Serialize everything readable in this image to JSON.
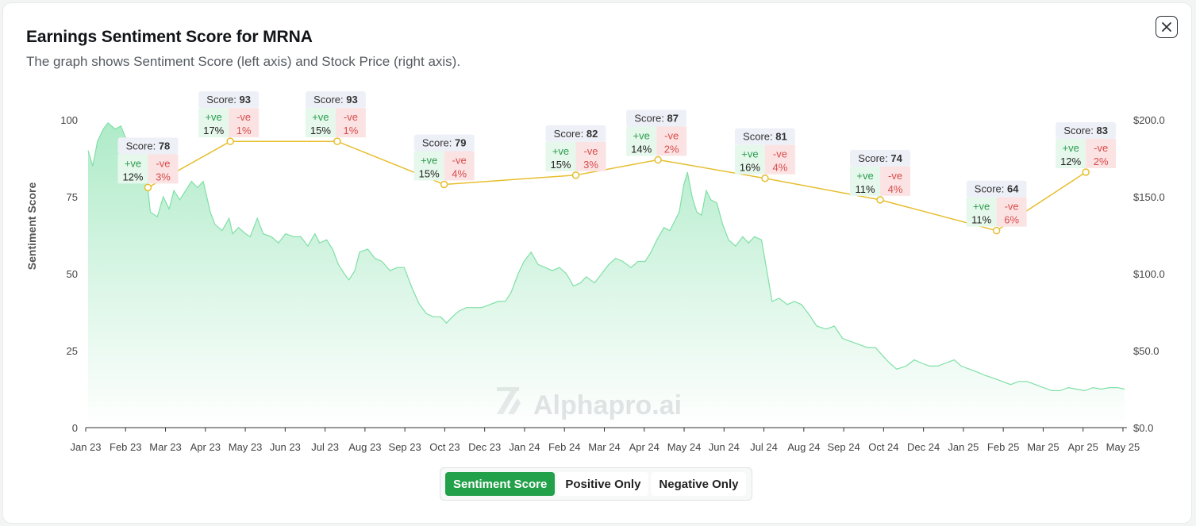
{
  "modal": {
    "title": "Earnings Sentiment Score for MRNA",
    "subtitle": "The graph shows Sentiment Score (left axis) and Stock Price (right axis).",
    "close_icon": "close-icon"
  },
  "watermark": "Alphapro.ai",
  "toggle": {
    "options": [
      "Sentiment Score",
      "Positive Only",
      "Negative Only"
    ],
    "active": "Sentiment Score"
  },
  "colors": {
    "sentiment_line": "#e6be2e",
    "price_area": "#3fcf7d",
    "positive": "#2a9d4e",
    "negative": "#d94c4c",
    "active_toggle": "#22a04a"
  },
  "chart_data": {
    "type": "line",
    "title": "Earnings Sentiment Score for MRNA",
    "subtitle": "The graph shows Sentiment Score (left axis) and Stock Price (right axis).",
    "x_ticks": [
      "Jan 23",
      "Feb 23",
      "Mar 23",
      "Apr 23",
      "May 23",
      "Jun 23",
      "Jul 23",
      "Aug 23",
      "Sep 23",
      "Oct 23",
      "Dec 23",
      "Jan 24",
      "Feb 24",
      "Mar 24",
      "Apr 24",
      "May 24",
      "Jun 24",
      "Jul 24",
      "Aug 24",
      "Sep 24",
      "Oct 24",
      "Dec 24",
      "Jan 25",
      "Feb 25",
      "Mar 25",
      "Apr 25",
      "May 25"
    ],
    "y_left": {
      "label": "Sentiment Score",
      "range": [
        0,
        100
      ],
      "ticks": [
        "0",
        "25",
        "50",
        "75",
        "100"
      ]
    },
    "y_right": {
      "label": "",
      "range": [
        0,
        200
      ],
      "ticks": [
        "$0.0",
        "$50.0",
        "$100.0",
        "$150.0",
        "$200.0"
      ]
    },
    "grid": false,
    "sentiment_series": {
      "name": "Sentiment Score",
      "points": [
        {
          "date": "2023-02-23",
          "score": 78,
          "positive": "12%",
          "negative": "3%"
        },
        {
          "date": "2023-05-04",
          "score": 93,
          "positive": "17%",
          "negative": "1%"
        },
        {
          "date": "2023-08-03",
          "score": 93,
          "positive": "15%",
          "negative": "1%"
        },
        {
          "date": "2023-11-02",
          "score": 79,
          "positive": "15%",
          "negative": "4%"
        },
        {
          "date": "2024-02-22",
          "score": 82,
          "positive": "15%",
          "negative": "3%"
        },
        {
          "date": "2024-05-02",
          "score": 87,
          "positive": "14%",
          "negative": "2%"
        },
        {
          "date": "2024-08-01",
          "score": 81,
          "positive": "16%",
          "negative": "4%"
        },
        {
          "date": "2024-11-07",
          "score": 74,
          "positive": "11%",
          "negative": "4%"
        },
        {
          "date": "2025-02-14",
          "score": 64,
          "positive": "11%",
          "negative": "6%"
        },
        {
          "date": "2025-05-01",
          "score": 83,
          "positive": "12%",
          "negative": "2%"
        }
      ]
    },
    "price_series": {
      "name": "Stock Price",
      "points": [
        [
          "2023-01-03",
          180
        ],
        [
          "2023-01-07",
          170
        ],
        [
          "2023-01-11",
          186
        ],
        [
          "2023-01-16",
          194
        ],
        [
          "2023-01-20",
          198
        ],
        [
          "2023-01-26",
          194
        ],
        [
          "2023-01-31",
          196
        ],
        [
          "2023-02-06",
          184
        ],
        [
          "2023-02-12",
          174
        ],
        [
          "2023-02-17",
          172
        ],
        [
          "2023-02-22",
          162
        ],
        [
          "2023-02-25",
          140
        ],
        [
          "2023-03-03",
          137
        ],
        [
          "2023-03-08",
          150
        ],
        [
          "2023-03-13",
          142
        ],
        [
          "2023-03-17",
          154
        ],
        [
          "2023-03-22",
          148
        ],
        [
          "2023-03-27",
          154
        ],
        [
          "2023-04-01",
          160
        ],
        [
          "2023-04-06",
          156
        ],
        [
          "2023-04-11",
          160
        ],
        [
          "2023-04-17",
          140
        ],
        [
          "2023-04-21",
          132
        ],
        [
          "2023-04-27",
          128
        ],
        [
          "2023-05-03",
          136
        ],
        [
          "2023-05-06",
          126
        ],
        [
          "2023-05-11",
          130
        ],
        [
          "2023-05-17",
          126
        ],
        [
          "2023-05-21",
          124
        ],
        [
          "2023-05-27",
          136
        ],
        [
          "2023-06-01",
          126
        ],
        [
          "2023-06-08",
          124
        ],
        [
          "2023-06-14",
          120
        ],
        [
          "2023-06-20",
          126
        ],
        [
          "2023-06-27",
          124
        ],
        [
          "2023-07-03",
          124
        ],
        [
          "2023-07-09",
          118
        ],
        [
          "2023-07-15",
          126
        ],
        [
          "2023-07-19",
          120
        ],
        [
          "2023-07-25",
          122
        ],
        [
          "2023-07-30",
          116
        ],
        [
          "2023-08-04",
          106
        ],
        [
          "2023-08-09",
          100
        ],
        [
          "2023-08-13",
          96
        ],
        [
          "2023-08-18",
          102
        ],
        [
          "2023-08-22",
          114
        ],
        [
          "2023-08-29",
          116
        ],
        [
          "2023-09-04",
          110
        ],
        [
          "2023-09-10",
          108
        ],
        [
          "2023-09-17",
          102
        ],
        [
          "2023-09-23",
          104
        ],
        [
          "2023-09-29",
          104
        ],
        [
          "2023-10-06",
          90
        ],
        [
          "2023-10-12",
          80
        ],
        [
          "2023-10-18",
          74
        ],
        [
          "2023-10-24",
          72
        ],
        [
          "2023-10-30",
          72
        ],
        [
          "2023-11-04",
          68
        ],
        [
          "2023-11-09",
          72
        ],
        [
          "2023-11-15",
          76
        ],
        [
          "2023-11-21",
          78
        ],
        [
          "2023-11-27",
          78
        ],
        [
          "2023-12-04",
          78
        ],
        [
          "2023-12-11",
          80
        ],
        [
          "2023-12-18",
          82
        ],
        [
          "2023-12-24",
          82
        ],
        [
          "2023-12-29",
          88
        ],
        [
          "2024-01-04",
          100
        ],
        [
          "2024-01-09",
          108
        ],
        [
          "2024-01-15",
          114
        ],
        [
          "2024-01-21",
          106
        ],
        [
          "2024-01-27",
          104
        ],
        [
          "2024-02-02",
          102
        ],
        [
          "2024-02-08",
          104
        ],
        [
          "2024-02-14",
          100
        ],
        [
          "2024-02-20",
          92
        ],
        [
          "2024-02-26",
          94
        ],
        [
          "2024-03-02",
          98
        ],
        [
          "2024-03-09",
          94
        ],
        [
          "2024-03-15",
          100
        ],
        [
          "2024-03-21",
          106
        ],
        [
          "2024-03-27",
          110
        ],
        [
          "2024-04-02",
          108
        ],
        [
          "2024-04-09",
          104
        ],
        [
          "2024-04-15",
          108
        ],
        [
          "2024-04-21",
          108
        ],
        [
          "2024-04-26",
          114
        ],
        [
          "2024-05-01",
          122
        ],
        [
          "2024-05-07",
          130
        ],
        [
          "2024-05-12",
          128
        ],
        [
          "2024-05-16",
          134
        ],
        [
          "2024-05-20",
          140
        ],
        [
          "2024-05-24",
          158
        ],
        [
          "2024-05-27",
          166
        ],
        [
          "2024-05-31",
          150
        ],
        [
          "2024-06-04",
          140
        ],
        [
          "2024-06-08",
          138
        ],
        [
          "2024-06-12",
          154
        ],
        [
          "2024-06-16",
          148
        ],
        [
          "2024-06-21",
          146
        ],
        [
          "2024-06-26",
          132
        ],
        [
          "2024-07-01",
          122
        ],
        [
          "2024-07-07",
          118
        ],
        [
          "2024-07-13",
          124
        ],
        [
          "2024-07-18",
          120
        ],
        [
          "2024-07-23",
          124
        ],
        [
          "2024-07-29",
          122
        ],
        [
          "2024-08-03",
          100
        ],
        [
          "2024-08-07",
          82
        ],
        [
          "2024-08-13",
          84
        ],
        [
          "2024-08-20",
          80
        ],
        [
          "2024-08-26",
          82
        ],
        [
          "2024-09-01",
          80
        ],
        [
          "2024-09-07",
          74
        ],
        [
          "2024-09-14",
          66
        ],
        [
          "2024-09-22",
          64
        ],
        [
          "2024-09-29",
          66
        ],
        [
          "2024-10-06",
          58
        ],
        [
          "2024-10-13",
          56
        ],
        [
          "2024-10-20",
          54
        ],
        [
          "2024-10-27",
          52
        ],
        [
          "2024-11-03",
          52
        ],
        [
          "2024-11-10",
          46
        ],
        [
          "2024-11-15",
          42
        ],
        [
          "2024-11-21",
          38
        ],
        [
          "2024-11-29",
          40
        ],
        [
          "2024-12-06",
          44
        ],
        [
          "2024-12-12",
          42
        ],
        [
          "2024-12-19",
          40
        ],
        [
          "2024-12-26",
          40
        ],
        [
          "2025-01-02",
          42
        ],
        [
          "2025-01-09",
          44
        ],
        [
          "2025-01-15",
          40
        ],
        [
          "2025-01-22",
          38
        ],
        [
          "2025-01-29",
          36
        ],
        [
          "2025-02-04",
          34
        ],
        [
          "2025-02-12",
          32
        ],
        [
          "2025-02-19",
          30
        ],
        [
          "2025-02-26",
          28
        ],
        [
          "2025-03-05",
          30
        ],
        [
          "2025-03-12",
          30
        ],
        [
          "2025-03-19",
          28
        ],
        [
          "2025-03-26",
          26
        ],
        [
          "2025-04-02",
          24
        ],
        [
          "2025-04-09",
          24
        ],
        [
          "2025-04-16",
          26
        ],
        [
          "2025-04-23",
          25
        ],
        [
          "2025-04-30",
          24
        ],
        [
          "2025-05-07",
          26
        ],
        [
          "2025-05-14",
          25
        ],
        [
          "2025-05-21",
          26
        ],
        [
          "2025-05-28",
          26
        ],
        [
          "2025-06-03",
          25
        ]
      ]
    },
    "watermark": "Alphapro.ai"
  }
}
